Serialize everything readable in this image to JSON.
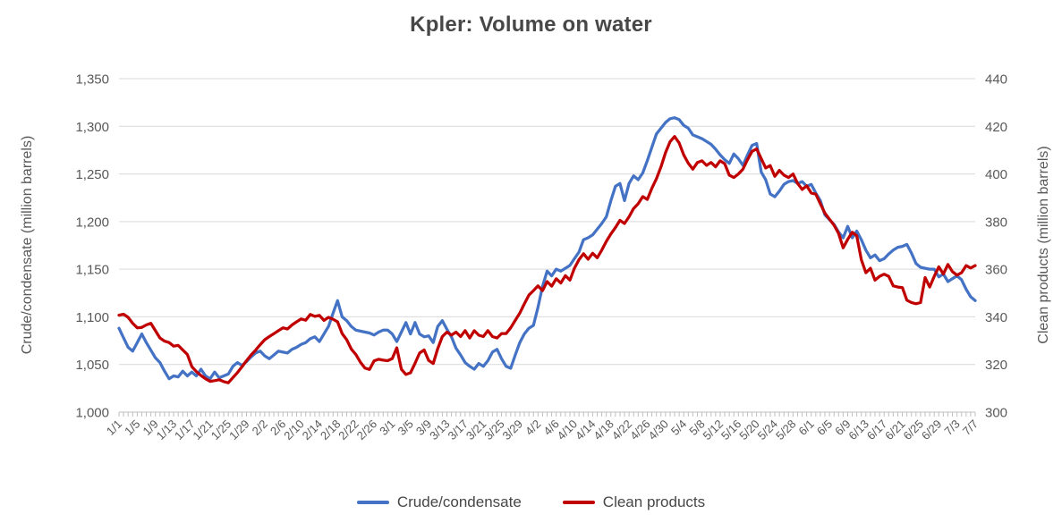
{
  "title": "Kpler: Volume on water",
  "chart_data": {
    "type": "line",
    "title": "Kpler: Volume on water",
    "grid": true,
    "legend_position": "bottom",
    "x_tick_interval_days": 4,
    "x_tick_labels": [
      "1/1",
      "1/5",
      "1/9",
      "1/13",
      "1/17",
      "1/21",
      "1/25",
      "1/29",
      "2/2",
      "2/6",
      "2/10",
      "2/14",
      "2/18",
      "2/22",
      "2/26",
      "3/1",
      "3/5",
      "3/9",
      "3/13",
      "3/17",
      "3/21",
      "3/25",
      "3/29",
      "4/2",
      "4/6",
      "4/10",
      "4/14",
      "4/18",
      "4/22",
      "4/26",
      "4/30",
      "5/4",
      "5/8",
      "5/12",
      "5/16",
      "5/20",
      "5/24",
      "5/28",
      "6/1",
      "6/5",
      "6/9",
      "6/13",
      "6/17",
      "6/21",
      "6/25",
      "6/29",
      "7/3",
      "7/7"
    ],
    "left_axis": {
      "label": "Crude/condensate (million barrels)",
      "min": 1000,
      "max": 1350,
      "step": 50,
      "tick_labels": [
        "1,000",
        "1,050",
        "1,100",
        "1,150",
        "1,200",
        "1,250",
        "1,300",
        "1,350"
      ]
    },
    "right_axis": {
      "label": "Clean products (million barrels)",
      "min": 300,
      "max": 440,
      "step": 20,
      "tick_labels": [
        "300",
        "320",
        "340",
        "360",
        "380",
        "400",
        "420",
        "440"
      ]
    },
    "series": [
      {
        "name": "Crude/condensate",
        "axis": "left",
        "color": "#4472C4",
        "values": [
          1088,
          1078,
          1068,
          1064,
          1073,
          1082,
          1073,
          1065,
          1057,
          1052,
          1043,
          1035,
          1038,
          1037,
          1043,
          1038,
          1042,
          1038,
          1045,
          1038,
          1035,
          1042,
          1036,
          1038,
          1040,
          1048,
          1052,
          1049,
          1053,
          1058,
          1062,
          1064,
          1059,
          1056,
          1060,
          1064,
          1063,
          1062,
          1066,
          1068,
          1071,
          1073,
          1077,
          1079,
          1074,
          1082,
          1090,
          1104,
          1117,
          1100,
          1096,
          1090,
          1086,
          1085,
          1084,
          1083,
          1081,
          1084,
          1086,
          1086,
          1082,
          1074,
          1084,
          1094,
          1082,
          1094,
          1082,
          1079,
          1080,
          1073,
          1090,
          1096,
          1087,
          1079,
          1067,
          1060,
          1052,
          1048,
          1045,
          1051,
          1048,
          1054,
          1063,
          1066,
          1056,
          1048,
          1046,
          1060,
          1073,
          1082,
          1088,
          1091,
          1110,
          1132,
          1148,
          1143,
          1150,
          1148,
          1151,
          1154,
          1161,
          1168,
          1181,
          1183,
          1186,
          1192,
          1198,
          1205,
          1222,
          1237,
          1240,
          1222,
          1240,
          1248,
          1244,
          1251,
          1264,
          1278,
          1292,
          1298,
          1304,
          1308,
          1309,
          1307,
          1301,
          1298,
          1291,
          1289,
          1287,
          1284,
          1281,
          1276,
          1270,
          1265,
          1261,
          1271,
          1266,
          1259,
          1270,
          1280,
          1282,
          1252,
          1244,
          1229,
          1226,
          1232,
          1239,
          1242,
          1243,
          1240,
          1242,
          1237,
          1239,
          1230,
          1222,
          1207,
          1202,
          1197,
          1189,
          1183,
          1195,
          1183,
          1190,
          1181,
          1170,
          1162,
          1165,
          1159,
          1161,
          1166,
          1170,
          1173,
          1174,
          1176,
          1167,
          1156,
          1152,
          1151,
          1150,
          1150,
          1142,
          1145,
          1137,
          1140,
          1143,
          1139,
          1129,
          1121,
          1117
        ]
      },
      {
        "name": "Clean products",
        "axis": "right",
        "color": "#C00000",
        "values": [
          340.7,
          341.1,
          339.8,
          337.3,
          335.4,
          335.6,
          336.6,
          337.3,
          334.2,
          331.1,
          329.8,
          329.2,
          327.7,
          328,
          326.1,
          324.2,
          319.1,
          317,
          315.4,
          314,
          312.9,
          313.2,
          313.6,
          312.8,
          312.3,
          314.5,
          316.6,
          319,
          321.6,
          324,
          326,
          328.3,
          330.4,
          331.7,
          332.9,
          334.2,
          335.4,
          334.9,
          336.6,
          337.9,
          339.1,
          338.6,
          341,
          340.2,
          340.6,
          338.5,
          339.8,
          339,
          337.9,
          333,
          330.4,
          326.5,
          324.2,
          321,
          318.5,
          317.9,
          321.5,
          322.2,
          321.8,
          321.6,
          322.5,
          327,
          318,
          315.8,
          316.5,
          320.5,
          324.8,
          326.1,
          321.7,
          320.4,
          326.7,
          331.7,
          333.6,
          332.3,
          333.6,
          331.7,
          334.2,
          331.1,
          334.2,
          332.3,
          331.7,
          334.2,
          331.7,
          331.1,
          333,
          333,
          335.4,
          338.5,
          341.6,
          345.4,
          349.1,
          351,
          353,
          351,
          354.8,
          352.9,
          356,
          354.2,
          357.3,
          355.4,
          360.4,
          364,
          366.5,
          364.2,
          366.7,
          364.8,
          368,
          371.7,
          374.8,
          377.5,
          380.5,
          379.2,
          382,
          385.5,
          387.5,
          390.5,
          389.3,
          394,
          398,
          403,
          409,
          413.5,
          415.7,
          413,
          408,
          404.5,
          402,
          404.8,
          405.5,
          403.6,
          404.8,
          403,
          405.5,
          404.3,
          399.5,
          398.5,
          400,
          402,
          406,
          409.5,
          410.5,
          406.5,
          402.5,
          403.5,
          399,
          401.5,
          399.5,
          398.5,
          400,
          396,
          393.5,
          395,
          392,
          391.5,
          387.5,
          383.5,
          381,
          378.5,
          375,
          369,
          372.5,
          375.5,
          374,
          364,
          358.5,
          360.4,
          355.4,
          357,
          357.9,
          357,
          353,
          352.5,
          352.3,
          347,
          346,
          345.5,
          346,
          356.5,
          352.5,
          357,
          361,
          358,
          362,
          359,
          357.5,
          358.5,
          361.5,
          360.5,
          361.5
        ]
      }
    ]
  },
  "legend": {
    "items": [
      {
        "label": "Crude/condensate",
        "color": "#4472C4"
      },
      {
        "label": "Clean products",
        "color": "#C00000"
      }
    ]
  },
  "style": {
    "gridline_color": "#D9D9D9",
    "axis_line_color": "#BFBFBF",
    "tick_label_color": "#595959",
    "title_color": "#474747"
  }
}
